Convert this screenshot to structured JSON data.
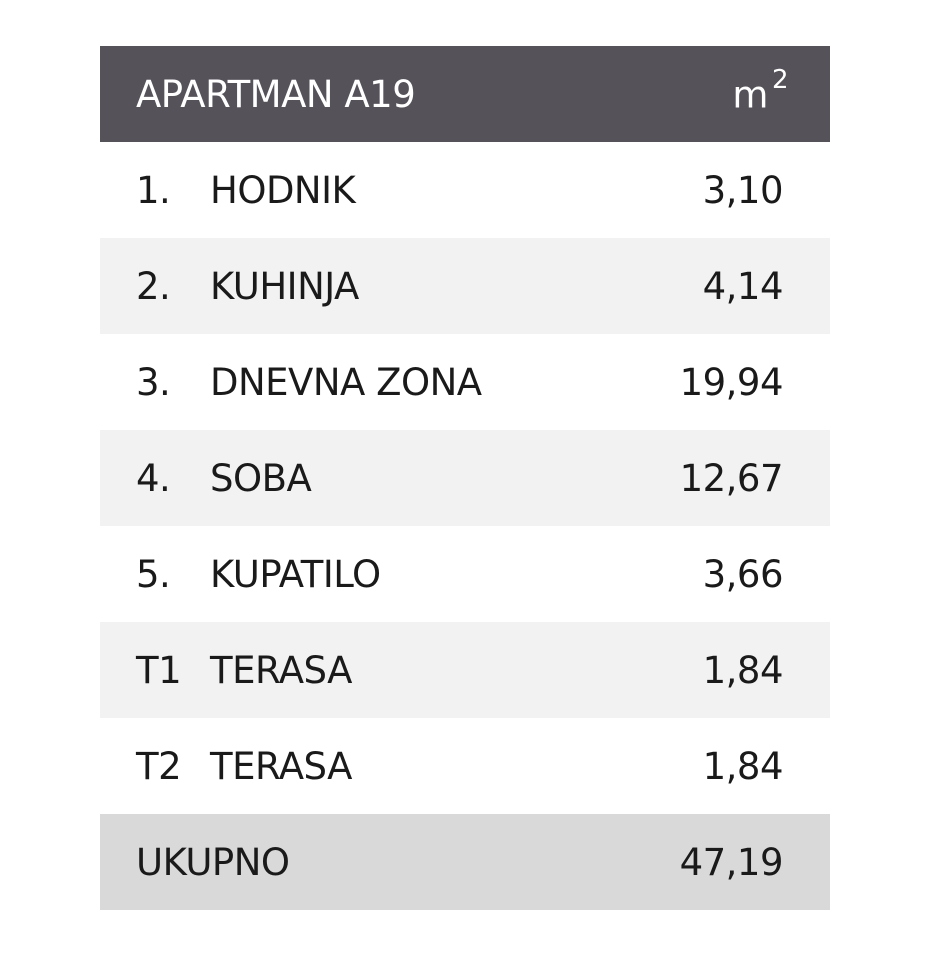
{
  "table": {
    "title": "APARTMAN A19",
    "unit_base": "m",
    "unit_exponent": "2",
    "rows": [
      {
        "num": "1.",
        "name": "HODNIK",
        "value": "3,10"
      },
      {
        "num": "2.",
        "name": "KUHINJA",
        "value": "4,14"
      },
      {
        "num": "3.",
        "name": "DNEVNA ZONA",
        "value": "19,94"
      },
      {
        "num": "4.",
        "name": "SOBA",
        "value": "12,67"
      },
      {
        "num": "5.",
        "name": "KUPATILO",
        "value": "3,66"
      },
      {
        "num": "T1",
        "name": "TERASA",
        "value": "1,84"
      },
      {
        "num": "T2",
        "name": "TERASA",
        "value": "1,84"
      }
    ],
    "total_label": "UKUPNO",
    "total_value": "47,19"
  },
  "colors": {
    "header_bg": "#55525a",
    "stripe_bg": "#f2f2f2",
    "total_bg": "#d9d9d9"
  }
}
